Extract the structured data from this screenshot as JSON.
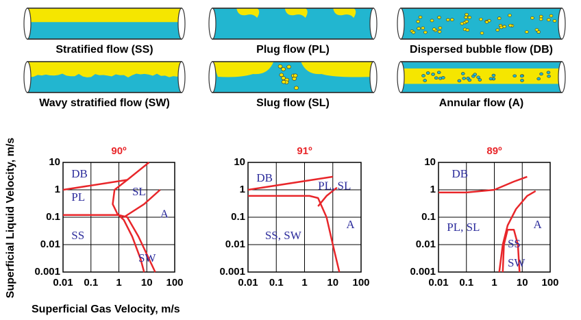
{
  "flow_patterns": [
    "Stratified flow (SS)",
    "Plug flow (PL)",
    "Dispersed bubble flow (DB)",
    "Wavy stratified flow (SW)",
    "Slug flow (SL)",
    "Annular flow (A)"
  ],
  "y_axis_label": "Superficial Liquid Velocity, m/s",
  "x_axis_label": "Superficial Gas Velocity, m/s",
  "chart_data": [
    {
      "type": "line",
      "title": "90º",
      "log_scale": true,
      "grid": true,
      "color": "#e8262a",
      "xlim": [
        0.01,
        100
      ],
      "ylim": [
        0.001,
        10
      ],
      "xticks": [
        0.01,
        0.1,
        1,
        10,
        100
      ],
      "yticks": [
        0.001,
        0.01,
        0.1,
        1,
        10
      ],
      "annotations": [
        "DB",
        "PL",
        "SL",
        "A",
        "SS",
        "SW"
      ],
      "boundaries": [
        {
          "x": [
            0.01,
            2,
            12
          ],
          "y": [
            1,
            2.3,
            10
          ]
        },
        {
          "x": [
            2,
            0.7,
            0.6,
            0.9,
            1.5,
            3,
            6,
            8
          ],
          "y": [
            2.3,
            1,
            0.3,
            0.13,
            0.08,
            0.02,
            0.003,
            0.001
          ]
        },
        {
          "x": [
            0.01,
            1,
            2,
            5,
            12,
            20
          ],
          "y": [
            0.12,
            0.12,
            0.1,
            0.02,
            0.003,
            0.001
          ]
        },
        {
          "x": [
            1.5,
            8,
            30
          ],
          "y": [
            0.1,
            0.3,
            1
          ]
        }
      ]
    },
    {
      "type": "line",
      "title": "91º",
      "log_scale": true,
      "grid": true,
      "color": "#e8262a",
      "xlim": [
        0.01,
        100
      ],
      "ylim": [
        0.001,
        10
      ],
      "xticks": [
        0.01,
        0.1,
        1,
        10,
        100
      ],
      "yticks": [
        0.001,
        0.01,
        0.1,
        1,
        10
      ],
      "annotations": [
        "DB",
        "PL, SL",
        "A",
        "SS, SW"
      ],
      "boundaries": [
        {
          "x": [
            0.01,
            10
          ],
          "y": [
            1,
            3
          ]
        },
        {
          "x": [
            0.01,
            1.5,
            3,
            6,
            10,
            17
          ],
          "y": [
            0.6,
            0.6,
            0.5,
            0.1,
            0.01,
            0.001
          ]
        },
        {
          "x": [
            3,
            6,
            14
          ],
          "y": [
            0.25,
            0.6,
            1.2
          ]
        }
      ]
    },
    {
      "type": "line",
      "title": "89º",
      "log_scale": true,
      "grid": true,
      "color": "#e8262a",
      "xlim": [
        0.01,
        100
      ],
      "ylim": [
        0.001,
        10
      ],
      "xticks": [
        0.01,
        0.1,
        1,
        10,
        100
      ],
      "yticks": [
        0.001,
        0.01,
        0.1,
        1,
        10
      ],
      "annotations": [
        "DB",
        "PL, SL",
        "A",
        "SS",
        "SW"
      ],
      "boundaries": [
        {
          "x": [
            0.01,
            0.1,
            1,
            5,
            15
          ],
          "y": [
            0.8,
            0.8,
            1,
            2,
            3
          ]
        },
        {
          "x": [
            1.5,
            2,
            3,
            6,
            15,
            30
          ],
          "y": [
            0.001,
            0.01,
            0.05,
            0.2,
            0.6,
            0.9
          ]
        },
        {
          "x": [
            2,
            2.2,
            3,
            5,
            7,
            8
          ],
          "y": [
            0.001,
            0.01,
            0.035,
            0.035,
            0.01,
            0.001
          ]
        }
      ]
    }
  ]
}
